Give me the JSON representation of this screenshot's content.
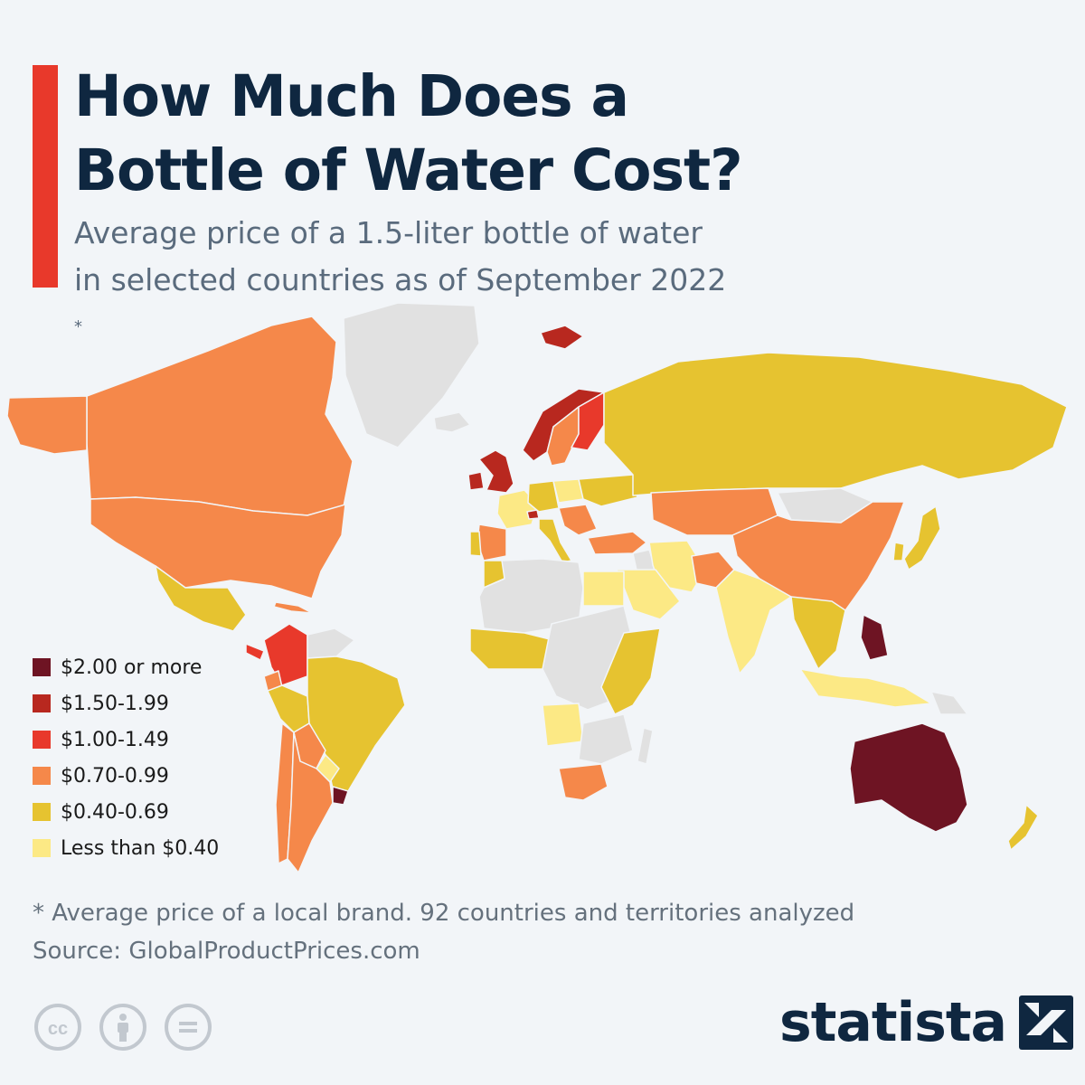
{
  "header": {
    "accent_color": "#e8392b",
    "title_lines": [
      "How Much Does a",
      "Bottle of Water Cost?"
    ],
    "subtitle_lines": [
      "Average price of a 1.5-liter bottle of water",
      "in selected countries as of September 2022"
    ],
    "subtitle_note_mark": "*"
  },
  "legend": [
    {
      "label": "$2.00 or more",
      "color": "#6e1423"
    },
    {
      "label": "$1.50-1.99",
      "color": "#b8281f"
    },
    {
      "label": "$1.00-1.49",
      "color": "#e8392b"
    },
    {
      "label": "$0.70-0.99",
      "color": "#f5884a"
    },
    {
      "label": "$0.40-0.69",
      "color": "#e6c330"
    },
    {
      "label": "Less than $0.40",
      "color": "#fce985"
    }
  ],
  "map": {
    "no_data_color": "#e1e1e1",
    "regions": [
      {
        "name": "Canada",
        "tier": 3
      },
      {
        "name": "United States",
        "tier": 3
      },
      {
        "name": "Greenland",
        "tier": null
      },
      {
        "name": "Mexico",
        "tier": 4
      },
      {
        "name": "Cuba",
        "tier": 3
      },
      {
        "name": "Colombia",
        "tier": 2
      },
      {
        "name": "Costa Rica",
        "tier": 2
      },
      {
        "name": "Venezuela",
        "tier": null
      },
      {
        "name": "Ecuador",
        "tier": 3
      },
      {
        "name": "Peru",
        "tier": 4
      },
      {
        "name": "Brazil",
        "tier": 4
      },
      {
        "name": "Bolivia",
        "tier": 3
      },
      {
        "name": "Paraguay",
        "tier": 5
      },
      {
        "name": "Chile",
        "tier": 3
      },
      {
        "name": "Argentina",
        "tier": 3
      },
      {
        "name": "Uruguay",
        "tier": 0
      },
      {
        "name": "United Kingdom",
        "tier": 1
      },
      {
        "name": "Ireland",
        "tier": 1
      },
      {
        "name": "Iceland",
        "tier": null
      },
      {
        "name": "Norway",
        "tier": 1
      },
      {
        "name": "Sweden",
        "tier": 3
      },
      {
        "name": "Finland",
        "tier": 2
      },
      {
        "name": "Svalbard",
        "tier": 1
      },
      {
        "name": "France",
        "tier": 5
      },
      {
        "name": "Spain",
        "tier": 3
      },
      {
        "name": "Portugal",
        "tier": 4
      },
      {
        "name": "Switzerland",
        "tier": 1
      },
      {
        "name": "Germany",
        "tier": 4
      },
      {
        "name": "Poland",
        "tier": 5
      },
      {
        "name": "Italy",
        "tier": 4
      },
      {
        "name": "Balkans",
        "tier": 3
      },
      {
        "name": "Ukraine",
        "tier": 4
      },
      {
        "name": "Turkey",
        "tier": 3
      },
      {
        "name": "Russia",
        "tier": 4
      },
      {
        "name": "Kazakhstan",
        "tier": 3
      },
      {
        "name": "Mongolia",
        "tier": null
      },
      {
        "name": "China",
        "tier": 3
      },
      {
        "name": "Japan",
        "tier": 4
      },
      {
        "name": "South Korea",
        "tier": 4
      },
      {
        "name": "Iran",
        "tier": 5
      },
      {
        "name": "Iraq",
        "tier": null
      },
      {
        "name": "Saudi Arabia",
        "tier": 5
      },
      {
        "name": "Pakistan",
        "tier": 3
      },
      {
        "name": "India",
        "tier": 5
      },
      {
        "name": "Southeast Asia",
        "tier": 4
      },
      {
        "name": "Philippines",
        "tier": 0
      },
      {
        "name": "Indonesia",
        "tier": 5
      },
      {
        "name": "Papua New Guinea",
        "tier": null
      },
      {
        "name": "Australia",
        "tier": 0
      },
      {
        "name": "New Zealand",
        "tier": 4
      },
      {
        "name": "Morocco",
        "tier": 4
      },
      {
        "name": "North Africa",
        "tier": null
      },
      {
        "name": "Egypt",
        "tier": 5
      },
      {
        "name": "West Africa",
        "tier": 4
      },
      {
        "name": "Central Africa",
        "tier": null
      },
      {
        "name": "East Africa",
        "tier": 4
      },
      {
        "name": "Angola",
        "tier": 5
      },
      {
        "name": "Southern Africa",
        "tier": null
      },
      {
        "name": "South Africa",
        "tier": 3
      },
      {
        "name": "Madagascar",
        "tier": null
      }
    ]
  },
  "footer": {
    "note": "* Average price of a local brand. 92 countries and territories analyzed",
    "source": "Source: GlobalProductPrices.com",
    "license_icons": [
      "cc-icon",
      "attribution-icon",
      "no-derivatives-icon"
    ],
    "brand_name": "statista",
    "brand_color": "#0f2740"
  }
}
